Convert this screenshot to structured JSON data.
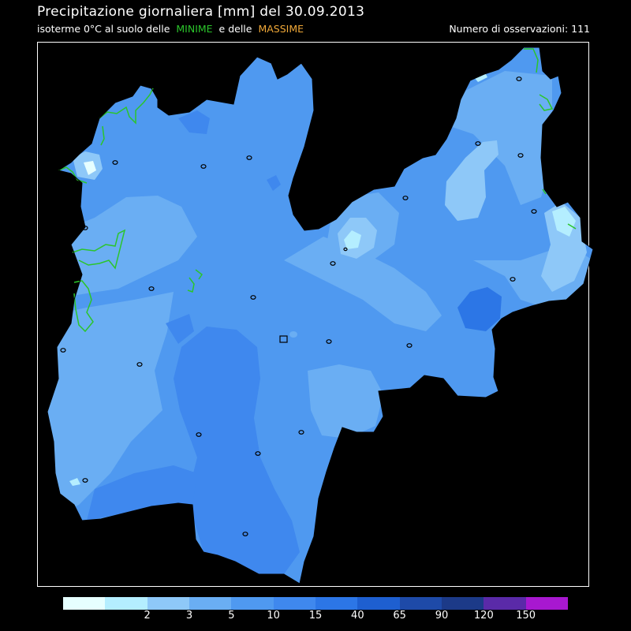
{
  "header": {
    "title": "Precipitazione giornaliera [mm] del 30.09.2013",
    "subtitle_prefix": "isoterme 0°C al suolo delle",
    "subtitle_minime": "MINIME",
    "subtitle_e": "e delle",
    "subtitle_massime": "MASSIME",
    "observations": "Numero di osservazioni: 111"
  },
  "colors": {
    "background": "#000000",
    "region_base": "#4f99f0",
    "minime_isotherm": "#2bc52b",
    "massime_isotherm": "#f0a838"
  },
  "legend": {
    "colors": [
      "#e6ffff",
      "#b4eeff",
      "#8ec8f8",
      "#6aaef3",
      "#4f99f0",
      "#3f88ee",
      "#2c76e6",
      "#1e5fd0",
      "#1e4aa8",
      "#1c3a88",
      "#5a2aa8",
      "#a818d0"
    ],
    "labels": [
      "2",
      "3",
      "5",
      "10",
      "15",
      "40",
      "65",
      "90",
      "120",
      "150"
    ]
  }
}
